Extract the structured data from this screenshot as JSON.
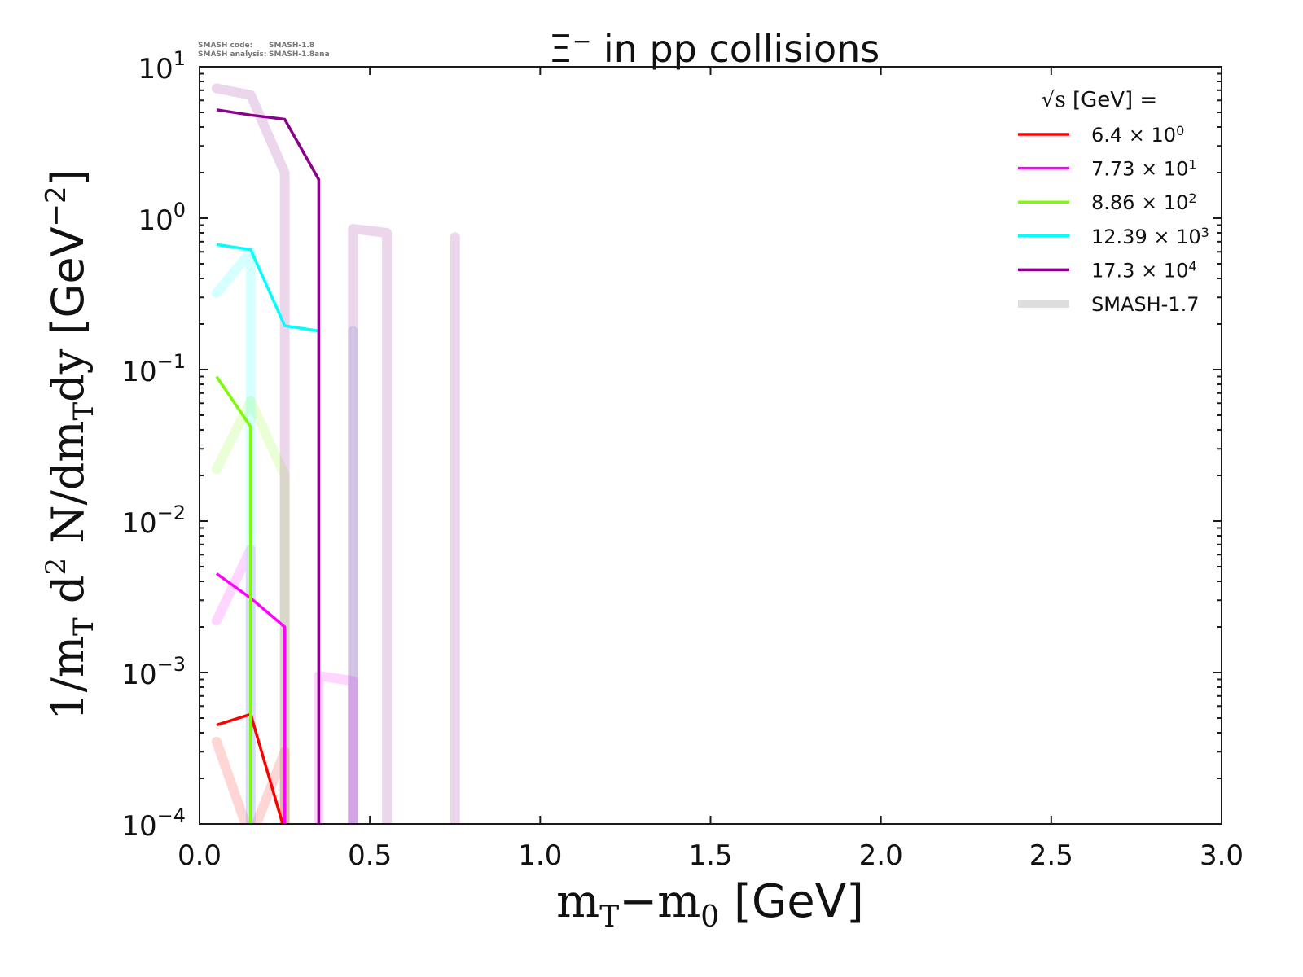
{
  "chart_data": {
    "type": "line",
    "title": "Ξ⁻ in pp collisions",
    "title_parts": {
      "symbol": "Ξ",
      "sup": "−",
      "rest": " in pp collisions"
    },
    "xlabel": "mT−m0 [GeV]",
    "xlabel_parts": {
      "m1": "m",
      "sub1": "T",
      "minus": "−m",
      "sub2": "0",
      "unit": " [GeV]"
    },
    "ylabel": "1/mT d² N/dmTdy [GeV⁻²]",
    "ylabel_parts": {
      "a": "1/m",
      "a_sub": "T",
      "b": " d",
      "b_sup": "2",
      "c": " N/dm",
      "c_sub": "T",
      "d": "dy ",
      "unit": "[GeV",
      "unit_sup": "−2",
      "unit_end": "]"
    },
    "xlim": [
      0.0,
      3.0
    ],
    "ylim": [
      0.0001,
      10
    ],
    "yscale": "log",
    "xticks": [
      0.0,
      0.5,
      1.0,
      1.5,
      2.0,
      2.5,
      3.0
    ],
    "xtick_labels": [
      "0.0",
      "0.5",
      "1.0",
      "1.5",
      "2.0",
      "2.5",
      "3.0"
    ],
    "yticks_exp": [
      1,
      0,
      -1,
      -2,
      -3,
      -4
    ],
    "ytick_base": "10",
    "ytick_labels": [
      "1",
      "0",
      "−1",
      "−2",
      "−3",
      "−4"
    ],
    "grid": false,
    "legend": {
      "placement": "top-right",
      "title": "√s  [GeV] =",
      "title_sqrt": "√s",
      "title_rest": "  [GeV] =",
      "entries": [
        {
          "label": "6.4 × 10",
          "sup": "0",
          "color": "#ff0000",
          "style": "thin"
        },
        {
          "label": "7.73 × 10",
          "sup": "1",
          "color": "#ff00ff",
          "style": "thin"
        },
        {
          "label": "8.86 × 10",
          "sup": "2",
          "color": "#7cfc00",
          "style": "thin"
        },
        {
          "label": "12.39 × 10",
          "sup": "3",
          "color": "#00ffff",
          "style": "thin"
        },
        {
          "label": "17.3 × 10",
          "sup": "4",
          "color": "#8b008b",
          "style": "thin"
        },
        {
          "label": "SMASH-1.7",
          "sup": "",
          "color": "#dddddd",
          "style": "thick"
        }
      ]
    },
    "annotation": {
      "line1_key": "SMASH code:",
      "line1_val": "SMASH-1.8",
      "line2_key": "SMASH analysis:",
      "line2_val": "SMASH-1.8ana"
    },
    "series": [
      {
        "name": "6.4 GeV (SMASH-1.8)",
        "color": "#ff0000",
        "style": "thin",
        "x": [
          0.05,
          0.15,
          0.25
        ],
        "y": [
          0.00045,
          0.00053,
          9e-05
        ]
      },
      {
        "name": "7.73 GeV (SMASH-1.8)",
        "color": "#ff00ff",
        "style": "thin",
        "x": [
          0.05,
          0.15,
          0.25,
          0.25
        ],
        "y": [
          0.0045,
          0.0031,
          0.002,
          5e-05
        ]
      },
      {
        "name": "8.86 GeV (SMASH-1.8)",
        "color": "#7cfc00",
        "style": "thin",
        "x": [
          0.05,
          0.15,
          0.15
        ],
        "y": [
          0.09,
          0.042,
          5e-05
        ]
      },
      {
        "name": "12.39 GeV (SMASH-1.8)",
        "color": "#00ffff",
        "style": "thin",
        "x": [
          0.05,
          0.15,
          0.25,
          0.35,
          0.35
        ],
        "y": [
          0.67,
          0.62,
          0.195,
          0.18,
          5e-05
        ]
      },
      {
        "name": "17.3 GeV (SMASH-1.8)",
        "color": "#8b008b",
        "style": "thin",
        "x": [
          0.05,
          0.15,
          0.25,
          0.35,
          0.35
        ],
        "y": [
          5.2,
          4.8,
          4.5,
          1.8,
          5e-05
        ]
      },
      {
        "name": "6.4 GeV (SMASH-1.7)",
        "color": "#ff0000",
        "style": "thick",
        "x": [
          0.05,
          0.15,
          0.25,
          0.25
        ],
        "y": [
          0.00035,
          8e-05,
          0.0003,
          5e-05
        ]
      },
      {
        "name": "7.73 GeV (SMASH-1.7)",
        "color": "#ff00ff",
        "style": "thick",
        "x": [
          0.05,
          0.15,
          0.15
        ],
        "y": [
          0.0022,
          0.0065,
          5e-05
        ]
      },
      {
        "name": "7.73 GeV (SMASH-1.7) b",
        "color": "#ff00ff",
        "style": "thick",
        "x": [
          0.35,
          0.35,
          0.45,
          0.45
        ],
        "y": [
          5e-05,
          0.00095,
          0.00088,
          5e-05
        ]
      },
      {
        "name": "8.86 GeV (SMASH-1.7)",
        "color": "#7cfc00",
        "style": "thick",
        "x": [
          0.05,
          0.15,
          0.25,
          0.25
        ],
        "y": [
          0.022,
          0.062,
          0.02,
          5e-05
        ]
      },
      {
        "name": "12.39 GeV (SMASH-1.7)",
        "color": "#00ffff",
        "style": "thick",
        "x": [
          0.05,
          0.15,
          0.15
        ],
        "y": [
          0.32,
          0.6,
          5e-05
        ]
      },
      {
        "name": "12.39 GeV (SMASH-1.7) b",
        "color": "#3a6fc0",
        "style": "thick",
        "x": [
          0.45,
          0.45
        ],
        "y": [
          0.18,
          5e-05
        ]
      },
      {
        "name": "17.3 GeV (SMASH-1.7)",
        "color": "#8b008b",
        "style": "thick",
        "x": [
          0.05,
          0.15,
          0.25,
          0.25
        ],
        "y": [
          7.2,
          6.5,
          2.0,
          5e-05
        ]
      },
      {
        "name": "17.3 GeV (SMASH-1.7) b",
        "color": "#8b008b",
        "style": "thick",
        "x": [
          0.45,
          0.45,
          0.55,
          0.55
        ],
        "y": [
          5e-05,
          0.85,
          0.8,
          5e-05
        ]
      },
      {
        "name": "17.3 GeV (SMASH-1.7) c",
        "color": "#8b008b",
        "style": "thick",
        "x": [
          0.75,
          0.75
        ],
        "y": [
          5e-05,
          0.75
        ]
      }
    ]
  }
}
